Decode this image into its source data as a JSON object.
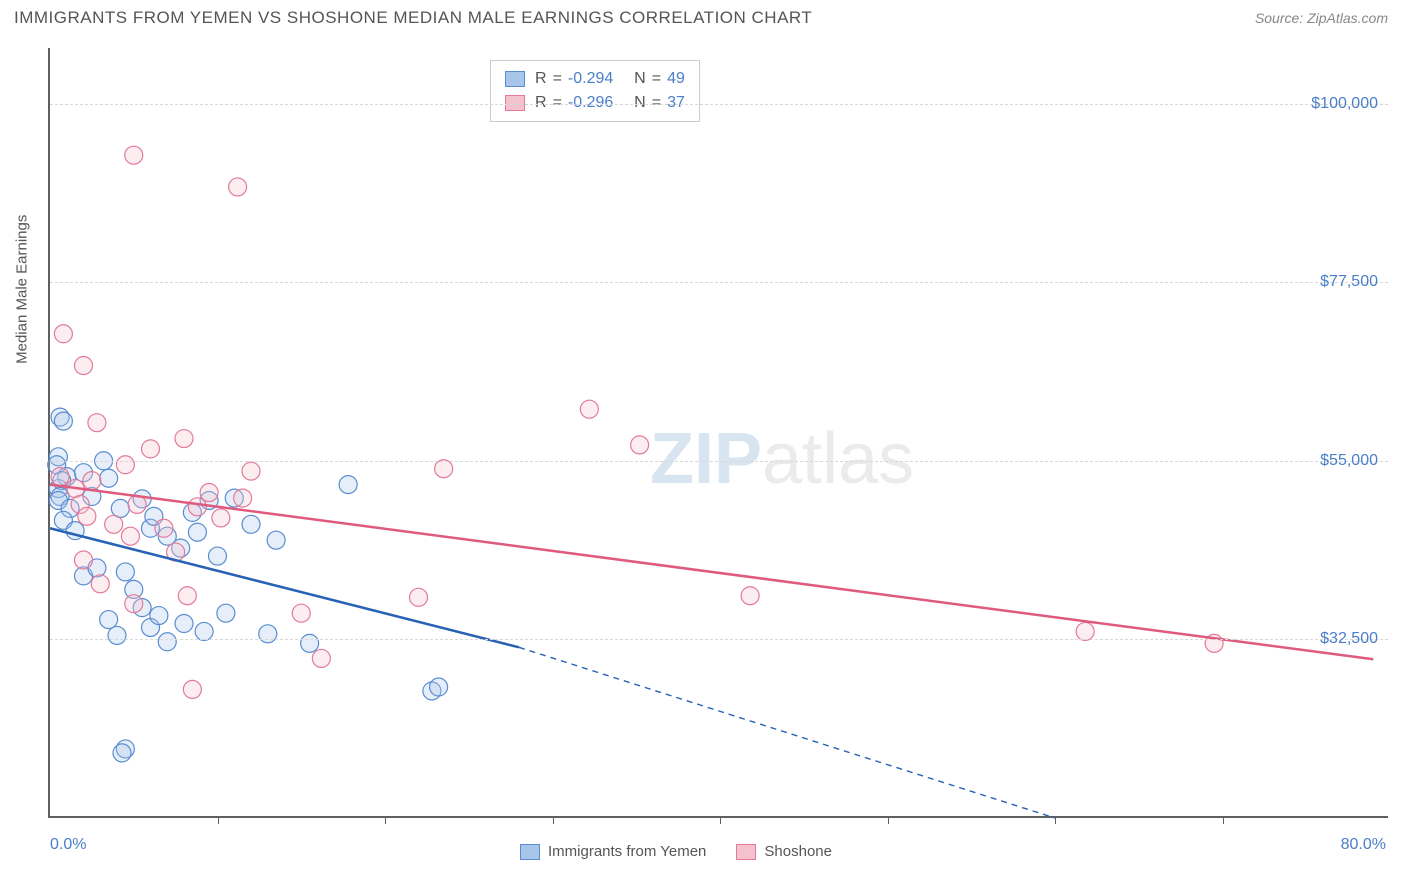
{
  "title": "IMMIGRANTS FROM YEMEN VS SHOSHONE MEDIAN MALE EARNINGS CORRELATION CHART",
  "source": "Source: ZipAtlas.com",
  "y_axis_title": "Median Male Earnings",
  "x_min_label": "0.0%",
  "x_max_label": "80.0%",
  "watermark_a": "ZIP",
  "watermark_b": "atlas",
  "chart": {
    "type": "scatter",
    "xlim": [
      0,
      80
    ],
    "ylim": [
      10000,
      107000
    ],
    "x_tick_step": 10,
    "y_ticks": [
      32500,
      55000,
      77500,
      100000
    ],
    "y_tick_labels": [
      "$32,500",
      "$55,000",
      "$77,500",
      "$100,000"
    ],
    "grid_color": "#d8d8d8",
    "axis_color": "#606060",
    "background_color": "#ffffff",
    "marker_radius": 9,
    "marker_fill_opacity": 0.3,
    "marker_stroke_width": 1.2,
    "series": [
      {
        "name": "Immigrants from Yemen",
        "color_fill": "#a8c6ea",
        "color_stroke": "#5a8dd0",
        "r_value": "-0.294",
        "n_value": "49",
        "trend": {
          "x1": 0,
          "y1": 46500,
          "x2": 28,
          "y2": 31500,
          "extend_x2": 60,
          "extend_y2": 10000,
          "color": "#2862b5",
          "width": 2.5
        },
        "points": [
          [
            0.6,
            60500
          ],
          [
            0.8,
            60000
          ],
          [
            0.5,
            55500
          ],
          [
            0.4,
            54500
          ],
          [
            1.0,
            53000
          ],
          [
            0.5,
            51500
          ],
          [
            0.7,
            52500
          ],
          [
            0.6,
            50500
          ],
          [
            0.5,
            50000
          ],
          [
            1.2,
            49000
          ],
          [
            0.8,
            47500
          ],
          [
            1.5,
            46200
          ],
          [
            2.0,
            53500
          ],
          [
            2.5,
            50500
          ],
          [
            3.2,
            55000
          ],
          [
            3.5,
            52800
          ],
          [
            4.2,
            49000
          ],
          [
            4.5,
            41000
          ],
          [
            5.5,
            50200
          ],
          [
            6.0,
            46500
          ],
          [
            6.2,
            48000
          ],
          [
            7.0,
            45500
          ],
          [
            7.8,
            44000
          ],
          [
            8.5,
            48500
          ],
          [
            8.8,
            46000
          ],
          [
            9.5,
            50000
          ],
          [
            10.0,
            43000
          ],
          [
            11.0,
            50300
          ],
          [
            12.0,
            47000
          ],
          [
            13.5,
            45000
          ],
          [
            17.8,
            52000
          ],
          [
            2.0,
            40500
          ],
          [
            2.8,
            41500
          ],
          [
            3.5,
            35000
          ],
          [
            4.0,
            33000
          ],
          [
            5.0,
            38800
          ],
          [
            5.5,
            36500
          ],
          [
            6.0,
            34000
          ],
          [
            6.5,
            35500
          ],
          [
            7.0,
            32200
          ],
          [
            8.0,
            34500
          ],
          [
            9.2,
            33500
          ],
          [
            10.5,
            35800
          ],
          [
            13.0,
            33200
          ],
          [
            15.5,
            32000
          ],
          [
            4.5,
            18700
          ],
          [
            4.3,
            18200
          ],
          [
            22.8,
            26000
          ],
          [
            23.2,
            26500
          ]
        ]
      },
      {
        "name": "Shoshone",
        "color_fill": "#f4c2cf",
        "color_stroke": "#e37a9a",
        "r_value": "-0.296",
        "n_value": "37",
        "trend": {
          "x1": 0,
          "y1": 52000,
          "x2": 79,
          "y2": 30000,
          "color": "#e05a7d",
          "width": 2.5
        },
        "points": [
          [
            5.0,
            93500
          ],
          [
            11.2,
            89500
          ],
          [
            32.2,
            61500
          ],
          [
            35.2,
            57000
          ],
          [
            41.8,
            38000
          ],
          [
            61.8,
            33500
          ],
          [
            69.5,
            32000
          ],
          [
            0.8,
            71000
          ],
          [
            2.0,
            67000
          ],
          [
            2.8,
            59800
          ],
          [
            0.6,
            53000
          ],
          [
            1.5,
            51500
          ],
          [
            2.5,
            52500
          ],
          [
            1.8,
            49500
          ],
          [
            2.2,
            48000
          ],
          [
            3.8,
            47000
          ],
          [
            4.5,
            54500
          ],
          [
            5.2,
            49500
          ],
          [
            6.0,
            56500
          ],
          [
            6.8,
            46500
          ],
          [
            8.0,
            57800
          ],
          [
            8.8,
            49200
          ],
          [
            9.5,
            51000
          ],
          [
            10.2,
            47800
          ],
          [
            11.5,
            50300
          ],
          [
            12.0,
            53700
          ],
          [
            7.5,
            43500
          ],
          [
            2.0,
            42500
          ],
          [
            3.0,
            39500
          ],
          [
            5.0,
            37000
          ],
          [
            8.2,
            38000
          ],
          [
            8.5,
            26200
          ],
          [
            15.0,
            35800
          ],
          [
            16.2,
            30100
          ],
          [
            22.0,
            37800
          ],
          [
            23.5,
            54000
          ],
          [
            4.8,
            45500
          ]
        ]
      }
    ],
    "stats_legend": {
      "r_label": "R",
      "n_label": "N",
      "eq": "="
    },
    "bottom_legend": {
      "series1_label": "Immigrants from Yemen",
      "series2_label": "Shoshone"
    }
  }
}
